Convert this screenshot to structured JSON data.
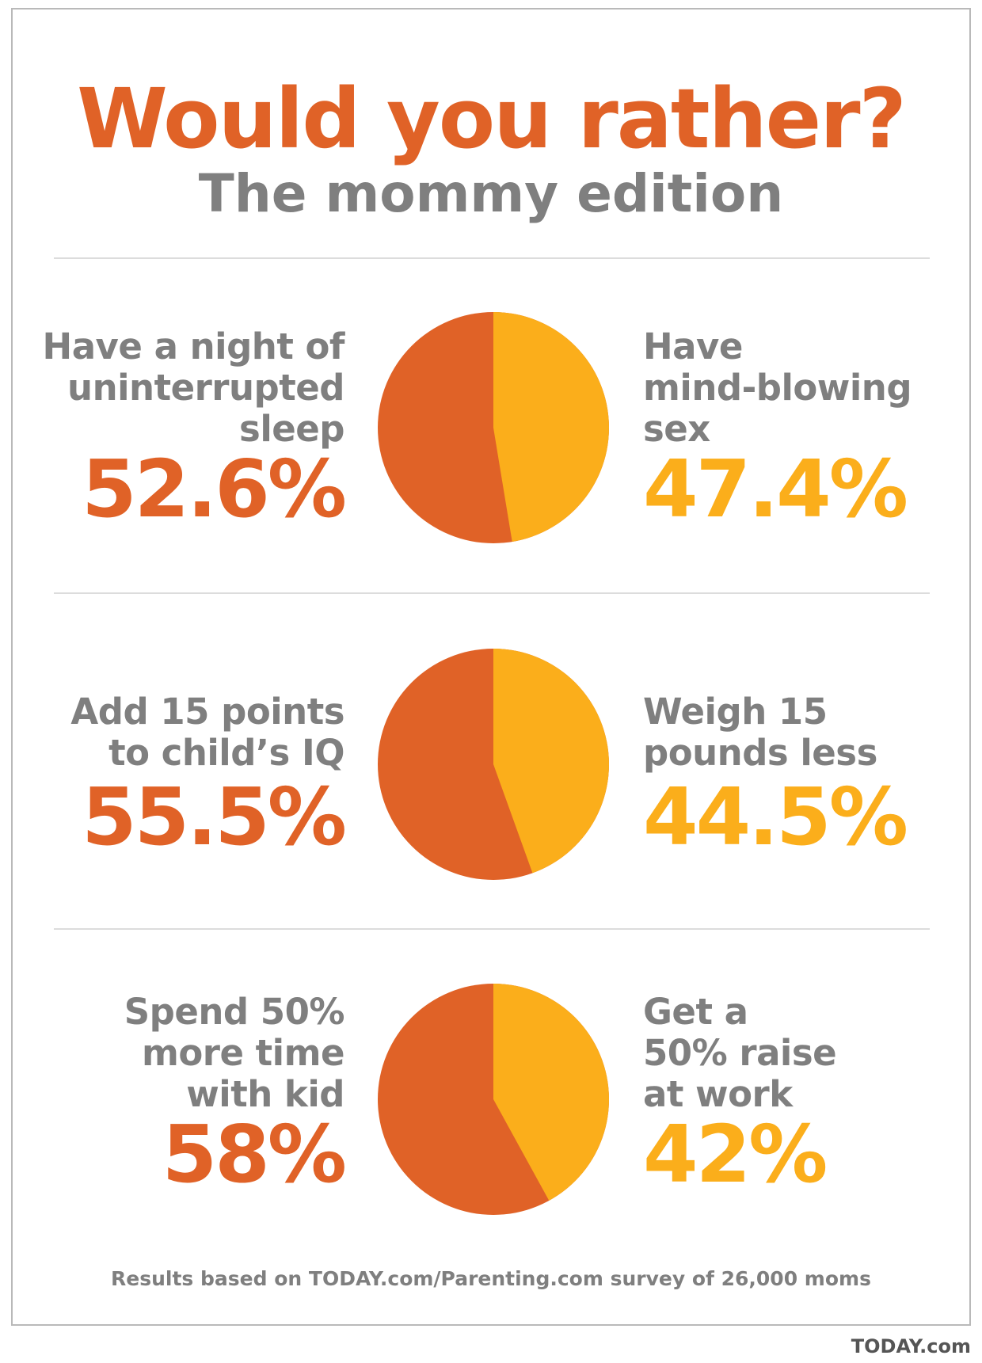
{
  "colors": {
    "orange": "#E06227",
    "yellow": "#FBAE1B",
    "gray": "#7F7F7F",
    "rule": "#DCDCDC"
  },
  "header": {
    "title": "Would you rather?",
    "subtitle": "The mommy edition"
  },
  "chart_data": [
    {
      "type": "pie",
      "left": {
        "label_lines": [
          "Have a night of",
          "uninterrupted",
          "sleep"
        ],
        "value": 52.6,
        "value_text": "52.6%"
      },
      "right": {
        "label_lines": [
          "Have",
          "mind-blowing",
          "sex"
        ],
        "value": 47.4,
        "value_text": "47.4%"
      }
    },
    {
      "type": "pie",
      "left": {
        "label_lines": [
          "Add 15 points",
          "to child’s IQ"
        ],
        "value": 55.5,
        "value_text": "55.5%"
      },
      "right": {
        "label_lines": [
          "Weigh 15",
          "pounds less"
        ],
        "value": 44.5,
        "value_text": "44.5%"
      }
    },
    {
      "type": "pie",
      "left": {
        "label_lines": [
          "Spend 50%",
          "more time",
          "with kid"
        ],
        "value": 58,
        "value_text": "58%"
      },
      "right": {
        "label_lines": [
          "Get a",
          "50% raise",
          "at work"
        ],
        "value": 42,
        "value_text": "42%"
      }
    }
  ],
  "footer": {
    "note": "Results based on TODAY.com/Parenting.com survey of 26,000 moms",
    "credit": "TODAY.com"
  }
}
